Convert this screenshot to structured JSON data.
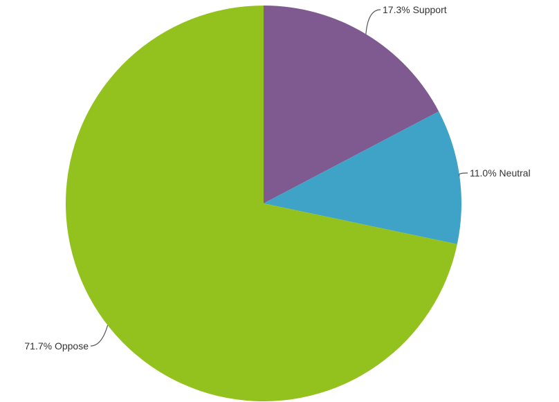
{
  "chart_data": {
    "type": "pie",
    "title": "",
    "start_angle_deg": 0,
    "direction": "clockwise",
    "slices": [
      {
        "label": "Support",
        "value": 17.3,
        "display": "17.3% Support",
        "color": "#7f5a91"
      },
      {
        "label": "Neutral",
        "value": 11.0,
        "display": "11.0% Neutral",
        "color": "#3fa3c8"
      },
      {
        "label": "Oppose",
        "value": 71.7,
        "display": "71.7% Oppose",
        "color": "#93c21f"
      }
    ]
  }
}
